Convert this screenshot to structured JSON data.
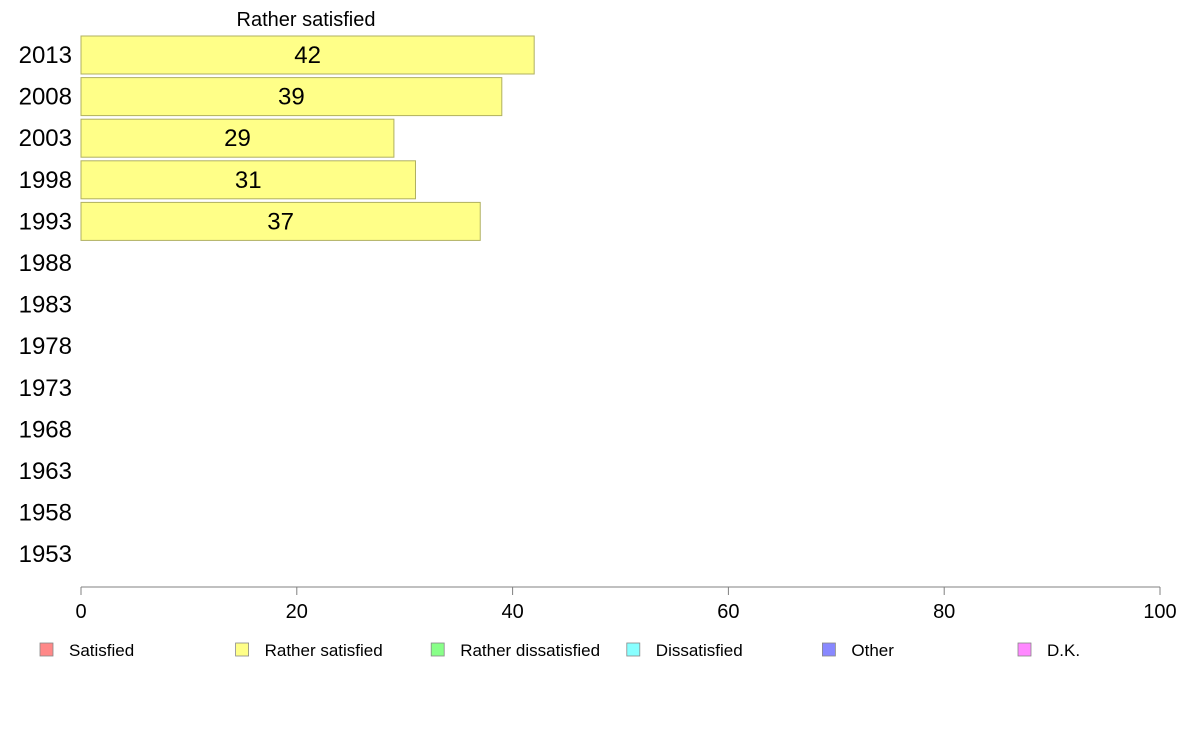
{
  "chart_data": {
    "type": "bar",
    "orientation": "horizontal",
    "title": "Rather satisfied",
    "categories": [
      "2013",
      "2008",
      "2003",
      "1998",
      "1993",
      "1988",
      "1983",
      "1978",
      "1973",
      "1968",
      "1963",
      "1958",
      "1953"
    ],
    "values": [
      42,
      39,
      29,
      31,
      37,
      null,
      null,
      null,
      null,
      null,
      null,
      null,
      null
    ],
    "xlim": [
      0,
      100
    ],
    "xticks": [
      "0",
      "20",
      "40",
      "60",
      "80",
      "100"
    ],
    "xlabel": "",
    "ylabel": "",
    "grid": false,
    "bar_color": "#ffff88",
    "bar_stroke": "#b0b060",
    "legend_position": "bottom",
    "legend": [
      {
        "label": "Satisfied",
        "color": "#ff8888"
      },
      {
        "label": "Rather satisfied",
        "color": "#ffff88"
      },
      {
        "label": "Rather dissatisfied",
        "color": "#88ff88"
      },
      {
        "label": "Dissatisfied",
        "color": "#88ffff"
      },
      {
        "label": "Other",
        "color": "#8888ff"
      },
      {
        "label": "D.K.",
        "color": "#ff88ff"
      }
    ]
  }
}
